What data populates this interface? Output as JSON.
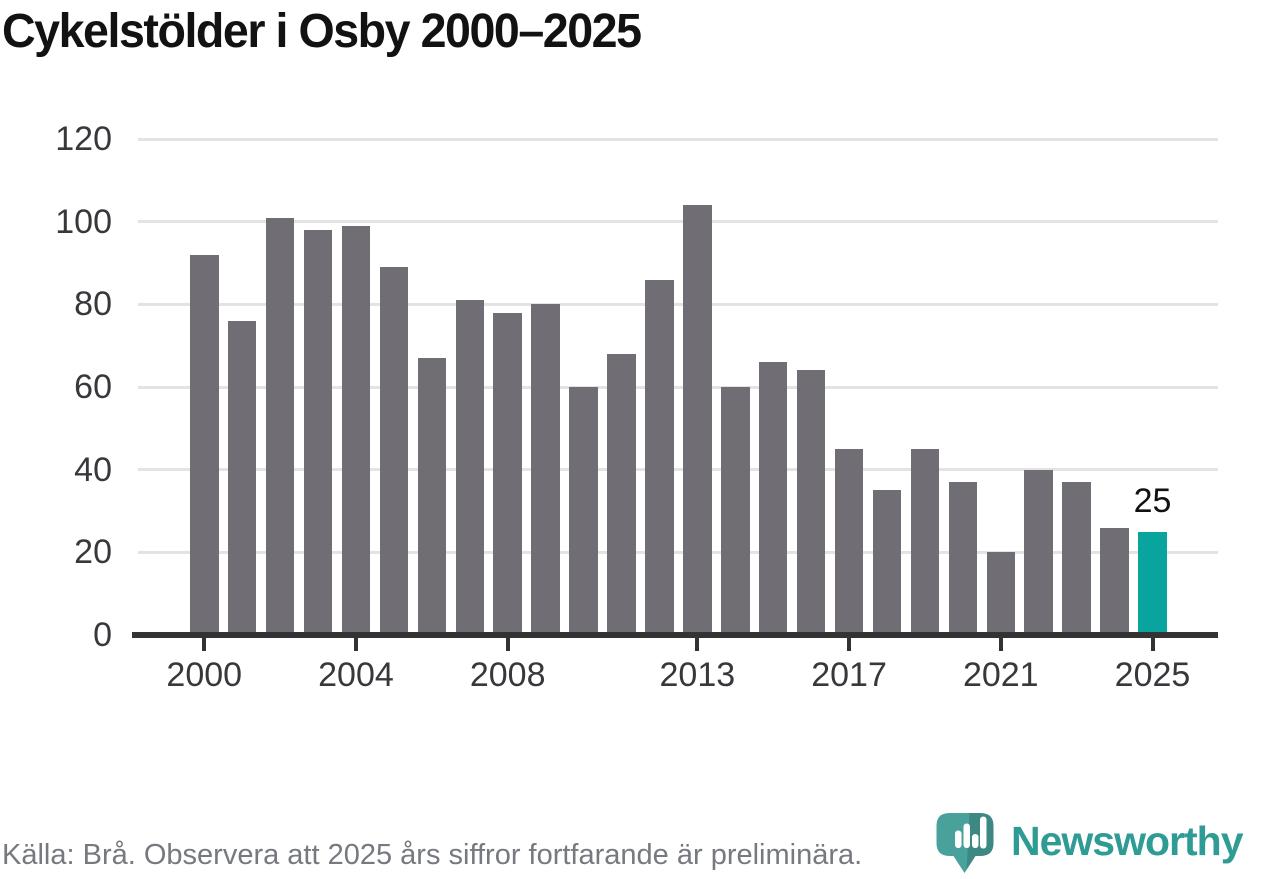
{
  "title": "Cykelstölder i Osby 2000–2025",
  "source_note": "Källa: Brå. Observera att 2025 års siffror fortfarande är preliminära.",
  "brand": {
    "name": "Newsworthy",
    "icon": "newsworthy-pin-barchart-icon"
  },
  "colors": {
    "bar": "#706e74",
    "highlight": "#0aa49e",
    "grid": "#e3e3e3",
    "axis": "#333333",
    "tick_label": "#38383c",
    "title": "#121212",
    "source_text": "#76797f",
    "brand_teal": "#2f9b95",
    "logo_fill": "#3e9c96"
  },
  "chart_data": {
    "type": "bar",
    "title": "Cykelstölder i Osby 2000–2025",
    "xlabel": "",
    "ylabel": "",
    "categories": [
      2000,
      2001,
      2002,
      2003,
      2004,
      2005,
      2006,
      2007,
      2008,
      2009,
      2010,
      2011,
      2012,
      2013,
      2014,
      2015,
      2016,
      2017,
      2018,
      2019,
      2020,
      2021,
      2022,
      2023,
      2024,
      2025
    ],
    "values": [
      92,
      76,
      101,
      98,
      99,
      89,
      67,
      81,
      78,
      80,
      60,
      68,
      86,
      104,
      60,
      66,
      64,
      45,
      35,
      45,
      37,
      20,
      40,
      37,
      26,
      25
    ],
    "highlight_index": 25,
    "bar_label": {
      "index": 25,
      "text": "25"
    },
    "ylim": [
      0,
      120
    ],
    "y_ticks": [
      0,
      20,
      40,
      60,
      80,
      100,
      120
    ],
    "x_ticks": [
      2000,
      2004,
      2008,
      2013,
      2017,
      2021,
      2025
    ],
    "grid": "horizontal-only",
    "legend": "none"
  }
}
